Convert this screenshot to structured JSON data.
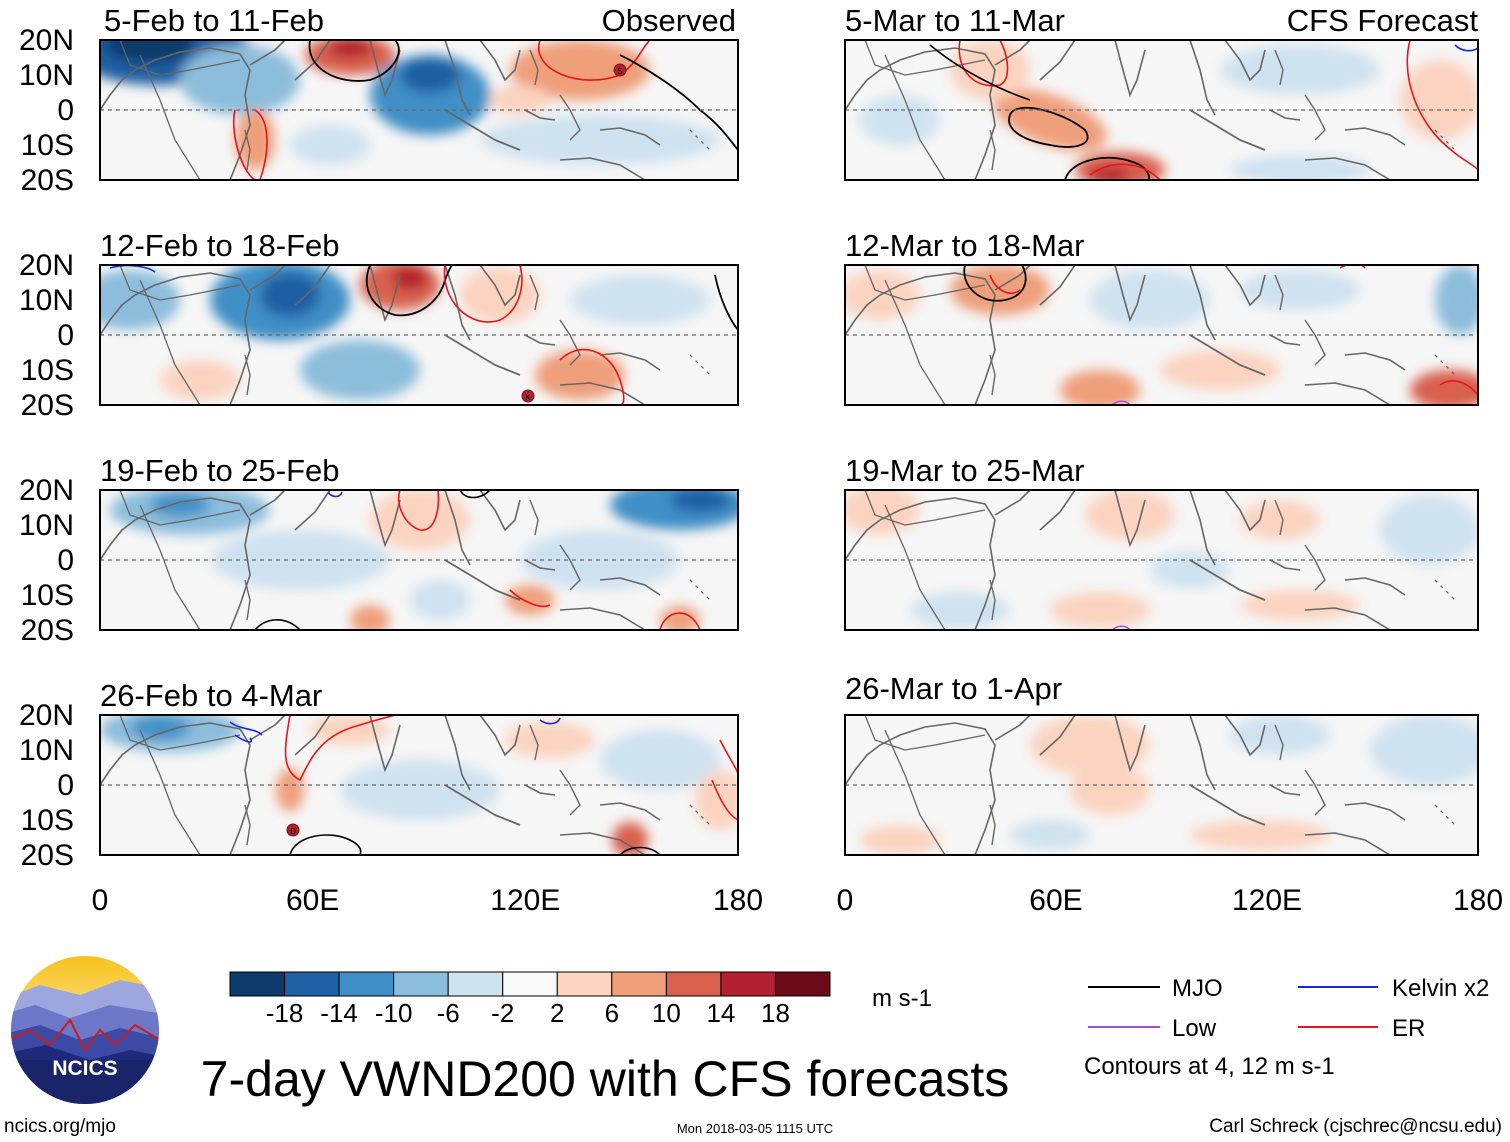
{
  "figure": {
    "title": "7-day VWND200 with CFS forecasts",
    "url": "ncics.org/mjo",
    "timestamp": "Mon 2018-03-05 1115 UTC",
    "author": "Carl Schreck (cjschrec@ncsu.edu)",
    "logo_text": "NCICS"
  },
  "columns": {
    "observed_label": "Observed",
    "forecast_label": "CFS Forecast"
  },
  "axes": {
    "lat_ticks": [
      "20N",
      "10N",
      "0",
      "10S",
      "20S"
    ],
    "lon_ticks": [
      "0",
      "60E",
      "120E",
      "180"
    ],
    "lat_range": [
      -20,
      20
    ],
    "lon_range": [
      0,
      180
    ]
  },
  "panels": {
    "observed": [
      {
        "period": "5-Feb to 11-Feb"
      },
      {
        "period": "12-Feb to 18-Feb"
      },
      {
        "period": "19-Feb to 25-Feb"
      },
      {
        "period": "26-Feb to 4-Mar"
      }
    ],
    "forecast": [
      {
        "period": "5-Mar to 11-Mar"
      },
      {
        "period": "12-Mar to 18-Mar"
      },
      {
        "period": "19-Mar to 25-Mar"
      },
      {
        "period": "26-Mar to 1-Apr"
      }
    ]
  },
  "colorbar": {
    "unit": "m s-1",
    "tick_labels": [
      "-18",
      "-14",
      "-10",
      "-6",
      "-2",
      "2",
      "6",
      "10",
      "14",
      "18"
    ],
    "colors": [
      "#0d3a6b",
      "#1f5fa3",
      "#3f8fc6",
      "#8cbddc",
      "#cfe2f0",
      "#f9f9f9",
      "#fbd3bf",
      "#ef9f7a",
      "#d8604d",
      "#b3202f",
      "#6b0b1a"
    ]
  },
  "legend": {
    "items": [
      {
        "label": "MJO",
        "color": "#000000"
      },
      {
        "label": "Kelvin x2",
        "color": "#1428d8"
      },
      {
        "label": "Low",
        "color": "#a44ee0"
      },
      {
        "label": "ER",
        "color": "#e8141a"
      }
    ],
    "note": "Contours at 4, 12 m s-1"
  },
  "storm_labels": [
    "S",
    "K",
    "D"
  ]
}
